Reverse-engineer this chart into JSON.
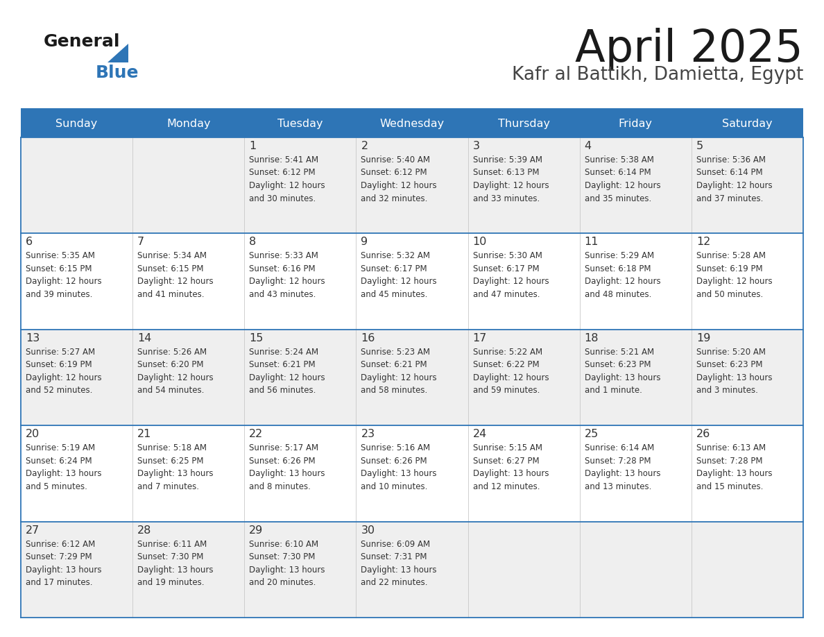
{
  "title": "April 2025",
  "subtitle": "Kafr al Battikh, Damietta, Egypt",
  "header_bg": "#2E75B6",
  "header_text": "#FFFFFF",
  "cell_bg_odd": "#EFEFEF",
  "cell_bg_even": "#FFFFFF",
  "separator_color": "#2E75B6",
  "text_color": "#333333",
  "day_headers": [
    "Sunday",
    "Monday",
    "Tuesday",
    "Wednesday",
    "Thursday",
    "Friday",
    "Saturday"
  ],
  "weeks": [
    [
      {
        "day": "",
        "info": ""
      },
      {
        "day": "",
        "info": ""
      },
      {
        "day": "1",
        "info": "Sunrise: 5:41 AM\nSunset: 6:12 PM\nDaylight: 12 hours\nand 30 minutes."
      },
      {
        "day": "2",
        "info": "Sunrise: 5:40 AM\nSunset: 6:12 PM\nDaylight: 12 hours\nand 32 minutes."
      },
      {
        "day": "3",
        "info": "Sunrise: 5:39 AM\nSunset: 6:13 PM\nDaylight: 12 hours\nand 33 minutes."
      },
      {
        "day": "4",
        "info": "Sunrise: 5:38 AM\nSunset: 6:14 PM\nDaylight: 12 hours\nand 35 minutes."
      },
      {
        "day": "5",
        "info": "Sunrise: 5:36 AM\nSunset: 6:14 PM\nDaylight: 12 hours\nand 37 minutes."
      }
    ],
    [
      {
        "day": "6",
        "info": "Sunrise: 5:35 AM\nSunset: 6:15 PM\nDaylight: 12 hours\nand 39 minutes."
      },
      {
        "day": "7",
        "info": "Sunrise: 5:34 AM\nSunset: 6:15 PM\nDaylight: 12 hours\nand 41 minutes."
      },
      {
        "day": "8",
        "info": "Sunrise: 5:33 AM\nSunset: 6:16 PM\nDaylight: 12 hours\nand 43 minutes."
      },
      {
        "day": "9",
        "info": "Sunrise: 5:32 AM\nSunset: 6:17 PM\nDaylight: 12 hours\nand 45 minutes."
      },
      {
        "day": "10",
        "info": "Sunrise: 5:30 AM\nSunset: 6:17 PM\nDaylight: 12 hours\nand 47 minutes."
      },
      {
        "day": "11",
        "info": "Sunrise: 5:29 AM\nSunset: 6:18 PM\nDaylight: 12 hours\nand 48 minutes."
      },
      {
        "day": "12",
        "info": "Sunrise: 5:28 AM\nSunset: 6:19 PM\nDaylight: 12 hours\nand 50 minutes."
      }
    ],
    [
      {
        "day": "13",
        "info": "Sunrise: 5:27 AM\nSunset: 6:19 PM\nDaylight: 12 hours\nand 52 minutes."
      },
      {
        "day": "14",
        "info": "Sunrise: 5:26 AM\nSunset: 6:20 PM\nDaylight: 12 hours\nand 54 minutes."
      },
      {
        "day": "15",
        "info": "Sunrise: 5:24 AM\nSunset: 6:21 PM\nDaylight: 12 hours\nand 56 minutes."
      },
      {
        "day": "16",
        "info": "Sunrise: 5:23 AM\nSunset: 6:21 PM\nDaylight: 12 hours\nand 58 minutes."
      },
      {
        "day": "17",
        "info": "Sunrise: 5:22 AM\nSunset: 6:22 PM\nDaylight: 12 hours\nand 59 minutes."
      },
      {
        "day": "18",
        "info": "Sunrise: 5:21 AM\nSunset: 6:23 PM\nDaylight: 13 hours\nand 1 minute."
      },
      {
        "day": "19",
        "info": "Sunrise: 5:20 AM\nSunset: 6:23 PM\nDaylight: 13 hours\nand 3 minutes."
      }
    ],
    [
      {
        "day": "20",
        "info": "Sunrise: 5:19 AM\nSunset: 6:24 PM\nDaylight: 13 hours\nand 5 minutes."
      },
      {
        "day": "21",
        "info": "Sunrise: 5:18 AM\nSunset: 6:25 PM\nDaylight: 13 hours\nand 7 minutes."
      },
      {
        "day": "22",
        "info": "Sunrise: 5:17 AM\nSunset: 6:26 PM\nDaylight: 13 hours\nand 8 minutes."
      },
      {
        "day": "23",
        "info": "Sunrise: 5:16 AM\nSunset: 6:26 PM\nDaylight: 13 hours\nand 10 minutes."
      },
      {
        "day": "24",
        "info": "Sunrise: 5:15 AM\nSunset: 6:27 PM\nDaylight: 13 hours\nand 12 minutes."
      },
      {
        "day": "25",
        "info": "Sunrise: 6:14 AM\nSunset: 7:28 PM\nDaylight: 13 hours\nand 13 minutes."
      },
      {
        "day": "26",
        "info": "Sunrise: 6:13 AM\nSunset: 7:28 PM\nDaylight: 13 hours\nand 15 minutes."
      }
    ],
    [
      {
        "day": "27",
        "info": "Sunrise: 6:12 AM\nSunset: 7:29 PM\nDaylight: 13 hours\nand 17 minutes."
      },
      {
        "day": "28",
        "info": "Sunrise: 6:11 AM\nSunset: 7:30 PM\nDaylight: 13 hours\nand 19 minutes."
      },
      {
        "day": "29",
        "info": "Sunrise: 6:10 AM\nSunset: 7:30 PM\nDaylight: 13 hours\nand 20 minutes."
      },
      {
        "day": "30",
        "info": "Sunrise: 6:09 AM\nSunset: 7:31 PM\nDaylight: 13 hours\nand 22 minutes."
      },
      {
        "day": "",
        "info": ""
      },
      {
        "day": "",
        "info": ""
      },
      {
        "day": "",
        "info": ""
      }
    ]
  ]
}
